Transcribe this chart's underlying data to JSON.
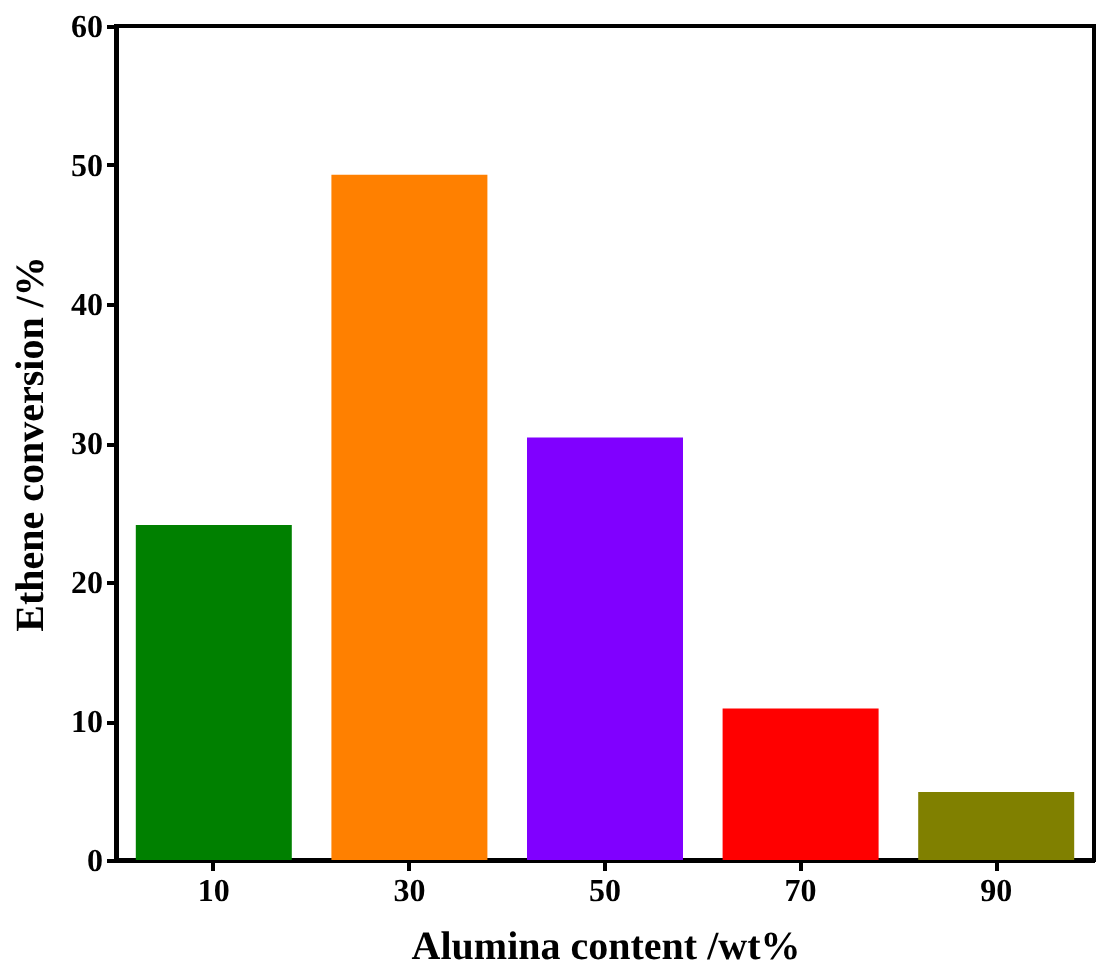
{
  "chart_data": {
    "type": "bar",
    "xlabel": "Alumina content /wt%",
    "ylabel": "Ethene conversion /%",
    "categories": [
      "10",
      "30",
      "50",
      "70",
      "90"
    ],
    "values": [
      24.1,
      49.3,
      30.4,
      10.9,
      4.9
    ],
    "colors": [
      "#008000",
      "#ff8000",
      "#8000ff",
      "#ff0000",
      "#808000"
    ],
    "ylim": [
      0,
      60
    ],
    "yticks": [
      0,
      10,
      20,
      30,
      40,
      50,
      60
    ],
    "grid": false,
    "legend": false
  }
}
